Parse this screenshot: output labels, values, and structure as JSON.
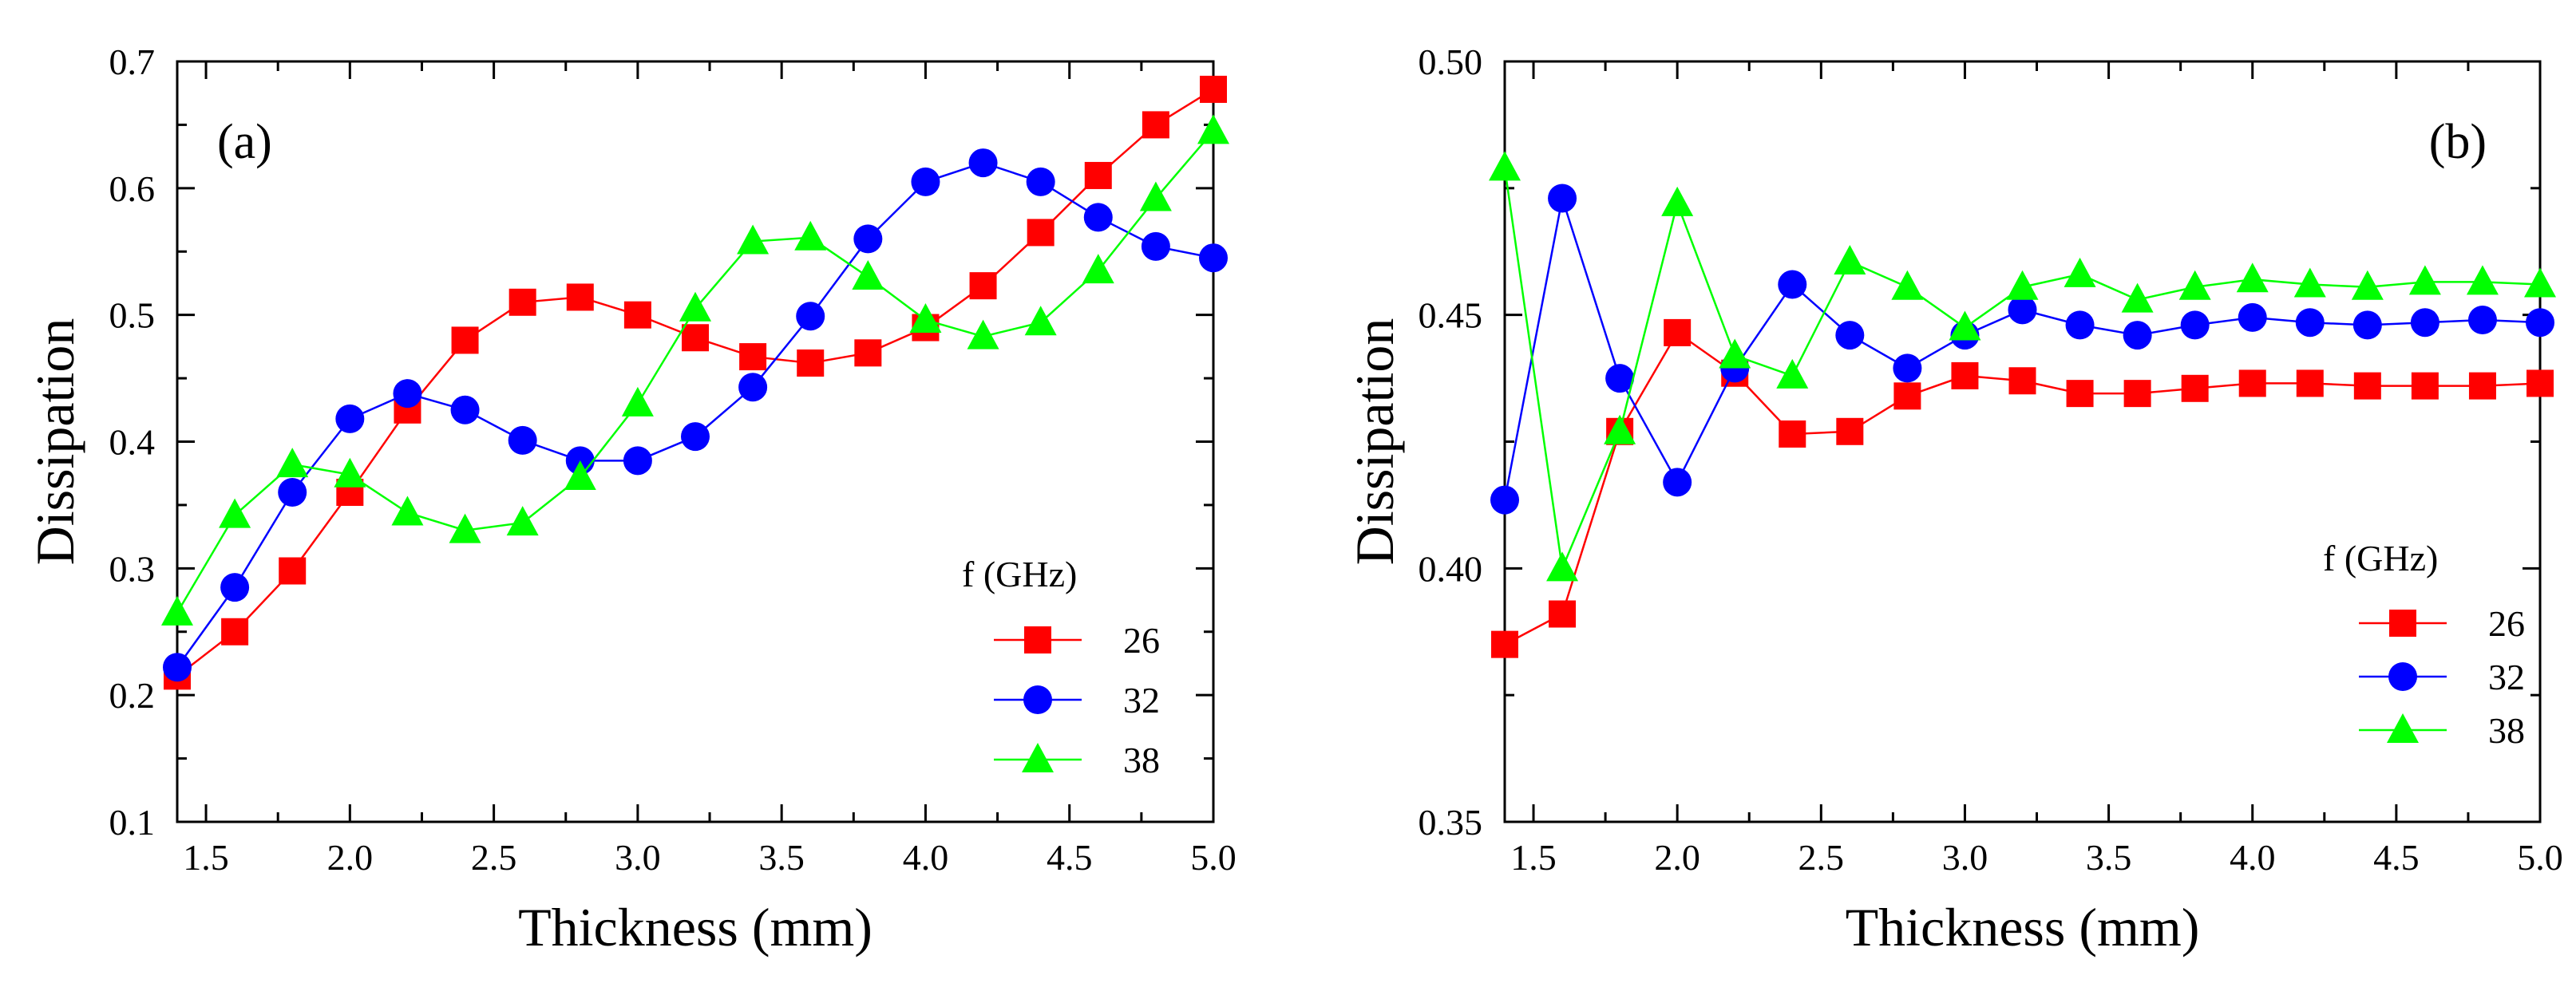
{
  "chart_data": [
    {
      "type": "line",
      "panel_label": "(a)",
      "xlabel": "Thickness (mm)",
      "ylabel": "Dissipation",
      "xlim": [
        1.4,
        5.0
      ],
      "ylim": [
        0.1,
        0.7
      ],
      "xticks": [
        "1.5",
        "2.0",
        "2.5",
        "3.0",
        "3.5",
        "4.0",
        "4.5",
        "5.0"
      ],
      "xtick_values": [
        1.5,
        2.0,
        2.5,
        3.0,
        3.5,
        4.0,
        4.5,
        5.0
      ],
      "yticks": [
        "0.1",
        "0.2",
        "0.3",
        "0.4",
        "0.5",
        "0.6",
        "0.7"
      ],
      "ytick_values": [
        0.1,
        0.2,
        0.3,
        0.4,
        0.5,
        0.6,
        0.7
      ],
      "legend_title": "f  (GHz)",
      "legend_position": "bottom-right",
      "x": [
        1.4,
        1.6,
        1.8,
        2.0,
        2.2,
        2.4,
        2.6,
        2.8,
        3.0,
        3.2,
        3.4,
        3.6,
        3.8,
        4.0,
        4.2,
        4.4,
        4.6,
        4.8,
        5.0
      ],
      "series": [
        {
          "name": "26",
          "color": "#ff0000",
          "marker": "square",
          "values": [
            0.215,
            0.25,
            0.298,
            0.36,
            0.425,
            0.48,
            0.51,
            0.514,
            0.5,
            0.482,
            0.467,
            0.462,
            0.47,
            0.49,
            0.523,
            0.565,
            0.61,
            0.65,
            0.678
          ]
        },
        {
          "name": "32",
          "color": "#0000ff",
          "marker": "circle",
          "values": [
            0.222,
            0.285,
            0.36,
            0.418,
            0.438,
            0.425,
            0.401,
            0.385,
            0.385,
            0.404,
            0.443,
            0.499,
            0.56,
            0.605,
            0.62,
            0.605,
            0.577,
            0.554,
            0.545
          ]
        },
        {
          "name": "38",
          "color": "#00ff00",
          "marker": "triangle",
          "values": [
            0.265,
            0.342,
            0.382,
            0.374,
            0.344,
            0.33,
            0.336,
            0.372,
            0.43,
            0.505,
            0.558,
            0.561,
            0.53,
            0.496,
            0.483,
            0.494,
            0.535,
            0.592,
            0.645
          ]
        }
      ]
    },
    {
      "type": "line",
      "panel_label": "(b)",
      "xlabel": "Thickness (mm)",
      "ylabel": "Dissipation",
      "xlim": [
        1.4,
        5.0
      ],
      "ylim": [
        0.35,
        0.5
      ],
      "xticks": [
        "1.5",
        "2.0",
        "2.5",
        "3.0",
        "3.5",
        "4.0",
        "4.5",
        "5.0"
      ],
      "xtick_values": [
        1.5,
        2.0,
        2.5,
        3.0,
        3.5,
        4.0,
        4.5,
        5.0
      ],
      "yticks": [
        "0.35",
        "0.40",
        "0.45",
        "0.50"
      ],
      "ytick_values": [
        0.35,
        0.4,
        0.45,
        0.5
      ],
      "legend_title": "f  (GHz)",
      "legend_position": "bottom-right",
      "x": [
        1.4,
        1.6,
        1.8,
        2.0,
        2.2,
        2.4,
        2.6,
        2.8,
        3.0,
        3.2,
        3.4,
        3.6,
        3.8,
        4.0,
        4.2,
        4.4,
        4.6,
        4.8,
        5.0
      ],
      "series": [
        {
          "name": "26",
          "color": "#ff0000",
          "marker": "square",
          "values": [
            0.385,
            0.391,
            0.427,
            0.4465,
            0.4385,
            0.4265,
            0.427,
            0.434,
            0.438,
            0.437,
            0.4345,
            0.4345,
            0.4355,
            0.4365,
            0.4365,
            0.436,
            0.436,
            0.436,
            0.4365
          ]
        },
        {
          "name": "32",
          "color": "#0000ff",
          "marker": "circle",
          "values": [
            0.4135,
            0.473,
            0.4375,
            0.417,
            0.4395,
            0.456,
            0.446,
            0.4395,
            0.446,
            0.451,
            0.448,
            0.446,
            0.448,
            0.4495,
            0.4485,
            0.448,
            0.4485,
            0.449,
            0.4485
          ]
        },
        {
          "name": "38",
          "color": "#00ff00",
          "marker": "triangle",
          "values": [
            0.479,
            0.4,
            0.427,
            0.472,
            0.442,
            0.438,
            0.4605,
            0.4555,
            0.4475,
            0.4555,
            0.458,
            0.453,
            0.4555,
            0.457,
            0.456,
            0.4555,
            0.4565,
            0.4565,
            0.456
          ]
        }
      ]
    }
  ]
}
